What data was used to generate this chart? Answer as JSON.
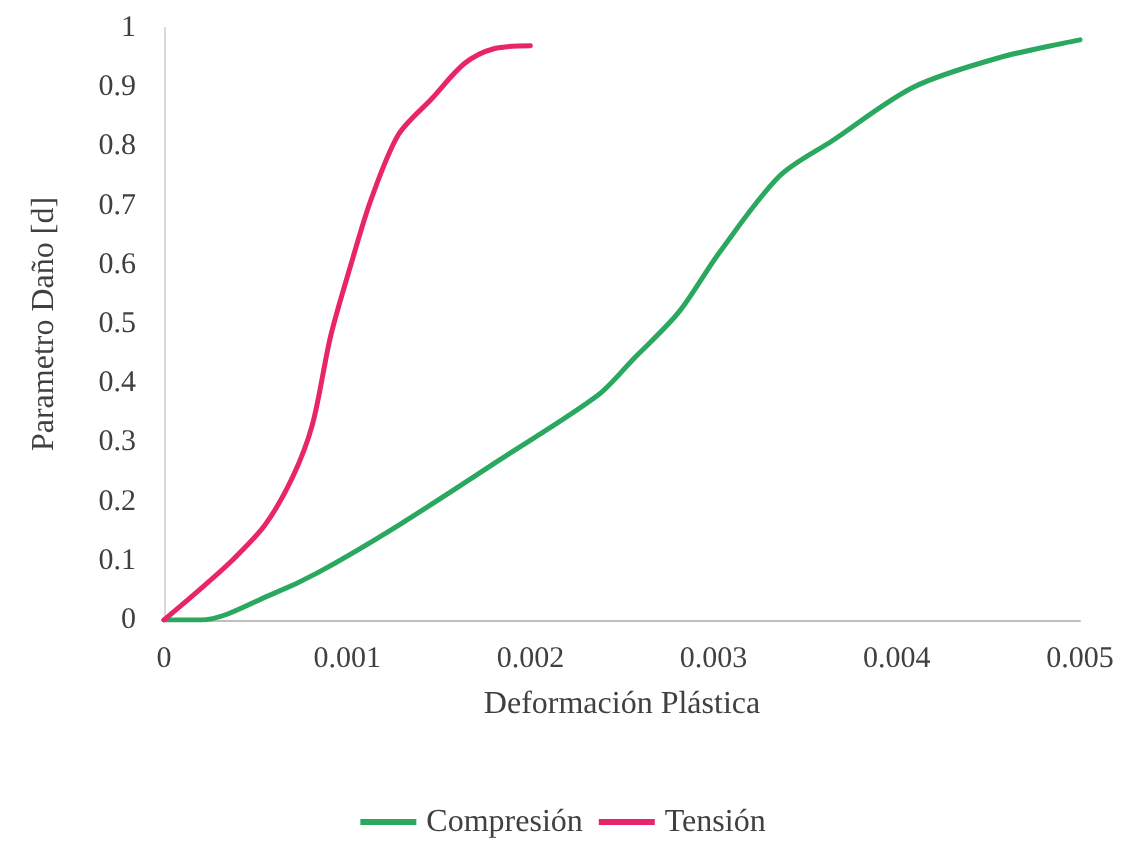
{
  "chart_data": {
    "type": "line",
    "xlabel": "Deformación Plástica",
    "ylabel": "Parametro Daño [d]",
    "xlim": [
      0,
      0.005
    ],
    "xticks": [
      0,
      0.001,
      0.002,
      0.003,
      0.004,
      0.005
    ],
    "ylim": [
      0,
      1
    ],
    "yticks": [
      0,
      0.1,
      0.2,
      0.3,
      0.4,
      0.5,
      0.6,
      0.7,
      0.8,
      0.9,
      1
    ],
    "grid": false,
    "legend": "bottom",
    "marker": "none",
    "line_style": "solid",
    "series": [
      {
        "name": "Compresión",
        "color": "#2aa860",
        "x": [
          0,
          0.0002,
          0.0006,
          0.00084,
          0.00128,
          0.00183,
          0.00237,
          0.00256,
          0.00281,
          0.00303,
          0.00336,
          0.00365,
          0.00409,
          0.00456,
          0.005
        ],
        "values": [
          0,
          0,
          0.045,
          0.08,
          0.16,
          0.27,
          0.38,
          0.44,
          0.52,
          0.62,
          0.75,
          0.81,
          0.9,
          0.95,
          0.98
        ]
      },
      {
        "name": "Tensión",
        "color": "#e8246a",
        "x": [
          0,
          0.00019,
          0.00037,
          0.00055,
          0.0007,
          0.00081,
          0.00091,
          0.00102,
          0.00113,
          0.00128,
          0.00146,
          0.00164,
          0.0018,
          0.002
        ],
        "values": [
          0,
          0.05,
          0.1,
          0.16,
          0.24,
          0.33,
          0.48,
          0.6,
          0.71,
          0.82,
          0.88,
          0.94,
          0.965,
          0.97
        ]
      }
    ]
  }
}
